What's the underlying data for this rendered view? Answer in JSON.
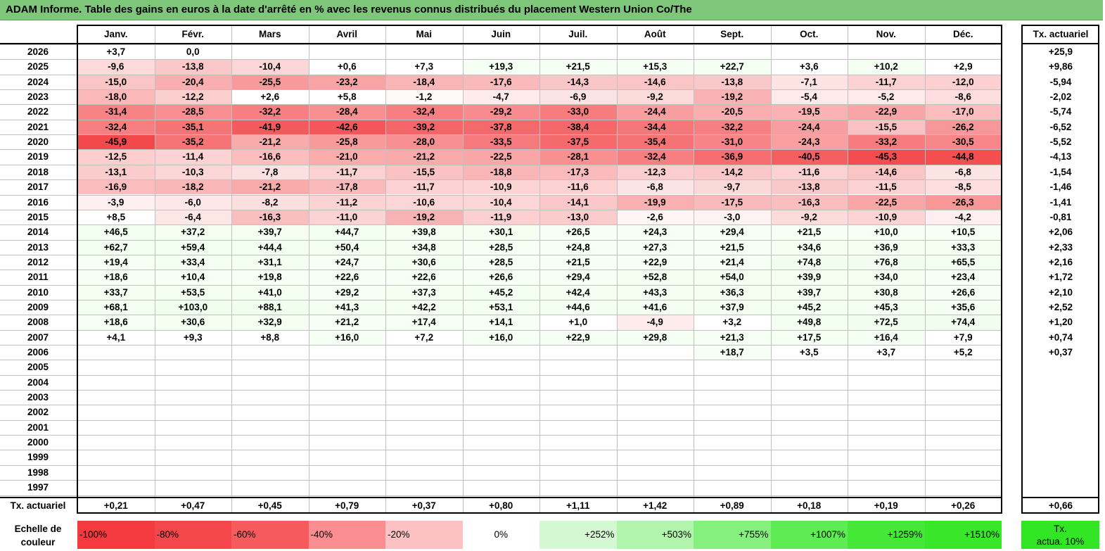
{
  "title": "ADAM Informe. Table des gains en euros à la date d'arrêté en % avec les revenus connus distribués du placement Western Union Co/The",
  "months": [
    "Janv.",
    "Févr.",
    "Mars",
    "Avril",
    "Mai",
    "Juin",
    "Juil.",
    "Août",
    "Sept.",
    "Oct.",
    "Nov.",
    "Déc."
  ],
  "annual_header": "Tx. actuariel",
  "footer_row_label": "Tx. actuariel",
  "chart_data": {
    "type": "table",
    "years": [
      "2026",
      "2025",
      "2024",
      "2023",
      "2022",
      "2021",
      "2020",
      "2019",
      "2018",
      "2017",
      "2016",
      "2015",
      "2014",
      "2013",
      "2012",
      "2011",
      "2010",
      "2009",
      "2008",
      "2007",
      "2006",
      "2005",
      "2004",
      "2003",
      "2002",
      "2001",
      "2000",
      "1999",
      "1998",
      "1997"
    ],
    "values": [
      [
        "+3,7",
        "0,0",
        "",
        "",
        "",
        "",
        "",
        "",
        "",
        "",
        "",
        ""
      ],
      [
        "-9,6",
        "-13,8",
        "-10,4",
        "+0,6",
        "+7,3",
        "+19,3",
        "+21,5",
        "+15,3",
        "+22,7",
        "+3,6",
        "+10,2",
        "+2,9"
      ],
      [
        "-15,0",
        "-20,4",
        "-25,5",
        "-23,2",
        "-18,4",
        "-17,6",
        "-14,3",
        "-14,6",
        "-13,8",
        "-7,1",
        "-11,7",
        "-12,0"
      ],
      [
        "-18,0",
        "-12,2",
        "+2,6",
        "+5,8",
        "-1,2",
        "-4,7",
        "-6,9",
        "-9,2",
        "-19,2",
        "-5,4",
        "-5,2",
        "-8,6"
      ],
      [
        "-31,4",
        "-28,5",
        "-32,2",
        "-28,4",
        "-32,4",
        "-29,2",
        "-33,0",
        "-24,4",
        "-20,5",
        "-19,5",
        "-22,9",
        "-17,0"
      ],
      [
        "-32,4",
        "-35,1",
        "-41,9",
        "-42,6",
        "-39,2",
        "-37,8",
        "-38,4",
        "-34,4",
        "-32,2",
        "-24,4",
        "-15,5",
        "-26,2"
      ],
      [
        "-45,9",
        "-35,2",
        "-21,2",
        "-25,8",
        "-28,0",
        "-33,5",
        "-37,5",
        "-35,4",
        "-31,0",
        "-24,3",
        "-33,2",
        "-30,5"
      ],
      [
        "-12,5",
        "-11,4",
        "-16,6",
        "-21,0",
        "-21,2",
        "-22,5",
        "-28,1",
        "-32,4",
        "-36,9",
        "-40,5",
        "-45,3",
        "-44,8"
      ],
      [
        "-13,1",
        "-10,3",
        "-7,8",
        "-11,7",
        "-15,5",
        "-18,8",
        "-17,3",
        "-12,3",
        "-14,2",
        "-11,6",
        "-14,6",
        "-6,8"
      ],
      [
        "-16,9",
        "-18,2",
        "-21,2",
        "-17,8",
        "-11,7",
        "-10,9",
        "-11,6",
        "-6,8",
        "-9,7",
        "-13,8",
        "-11,5",
        "-8,5"
      ],
      [
        "-3,9",
        "-6,0",
        "-8,2",
        "-11,2",
        "-10,6",
        "-10,4",
        "-14,1",
        "-19,9",
        "-17,5",
        "-16,3",
        "-22,5",
        "-26,3"
      ],
      [
        "+8,5",
        "-6,4",
        "-16,3",
        "-11,0",
        "-19,2",
        "-11,9",
        "-13,0",
        "-2,6",
        "-3,0",
        "-9,2",
        "-10,9",
        "-4,2"
      ],
      [
        "+46,5",
        "+37,2",
        "+39,7",
        "+44,7",
        "+39,8",
        "+30,1",
        "+26,5",
        "+24,3",
        "+29,4",
        "+21,5",
        "+10,0",
        "+10,5"
      ],
      [
        "+62,7",
        "+59,4",
        "+44,4",
        "+50,4",
        "+34,8",
        "+28,5",
        "+24,8",
        "+27,3",
        "+21,5",
        "+34,6",
        "+36,9",
        "+33,3"
      ],
      [
        "+19,4",
        "+33,4",
        "+31,1",
        "+24,7",
        "+30,6",
        "+28,5",
        "+21,5",
        "+22,9",
        "+21,4",
        "+74,8",
        "+76,8",
        "+65,5"
      ],
      [
        "+18,6",
        "+10,4",
        "+19,8",
        "+22,6",
        "+22,6",
        "+26,6",
        "+29,4",
        "+52,8",
        "+54,0",
        "+39,9",
        "+34,0",
        "+23,4"
      ],
      [
        "+33,7",
        "+53,5",
        "+41,0",
        "+29,2",
        "+37,3",
        "+45,2",
        "+42,4",
        "+43,3",
        "+36,3",
        "+39,7",
        "+30,8",
        "+26,6"
      ],
      [
        "+68,1",
        "+103,0",
        "+88,1",
        "+41,3",
        "+42,2",
        "+53,1",
        "+44,6",
        "+41,6",
        "+37,9",
        "+45,2",
        "+45,3",
        "+35,6"
      ],
      [
        "+18,6",
        "+30,6",
        "+32,9",
        "+21,2",
        "+17,4",
        "+14,1",
        "+1,0",
        "-4,9",
        "+3,2",
        "+49,8",
        "+72,5",
        "+74,4"
      ],
      [
        "+4,1",
        "+9,3",
        "+8,8",
        "+16,0",
        "+7,2",
        "+16,0",
        "+22,9",
        "+29,8",
        "+21,3",
        "+17,5",
        "+16,4",
        "+7,9"
      ],
      [
        "",
        "",
        "",
        "",
        "",
        "",
        "",
        "",
        "+18,7",
        "+3,5",
        "+3,7",
        "+5,2"
      ],
      [
        "",
        "",
        "",
        "",
        "",
        "",
        "",
        "",
        "",
        "",
        "",
        ""
      ],
      [
        "",
        "",
        "",
        "",
        "",
        "",
        "",
        "",
        "",
        "",
        "",
        ""
      ],
      [
        "",
        "",
        "",
        "",
        "",
        "",
        "",
        "",
        "",
        "",
        "",
        ""
      ],
      [
        "",
        "",
        "",
        "",
        "",
        "",
        "",
        "",
        "",
        "",
        "",
        ""
      ],
      [
        "",
        "",
        "",
        "",
        "",
        "",
        "",
        "",
        "",
        "",
        "",
        ""
      ],
      [
        "",
        "",
        "",
        "",
        "",
        "",
        "",
        "",
        "",
        "",
        "",
        ""
      ],
      [
        "",
        "",
        "",
        "",
        "",
        "",
        "",
        "",
        "",
        "",
        "",
        ""
      ],
      [
        "",
        "",
        "",
        "",
        "",
        "",
        "",
        "",
        "",
        "",
        "",
        ""
      ],
      [
        "",
        "",
        "",
        "",
        "",
        "",
        "",
        "",
        "",
        "",
        "",
        ""
      ]
    ],
    "annual": [
      "+25,9",
      "+9,86",
      "-5,94",
      "-2,02",
      "-5,74",
      "-6,52",
      "-5,52",
      "-4,13",
      "-1,54",
      "-1,46",
      "-1,41",
      "-0,81",
      "+2,06",
      "+2,33",
      "+2,16",
      "+1,72",
      "+2,10",
      "+2,52",
      "+1,20",
      "+0,74",
      "+0,37",
      "",
      "",
      "",
      "",
      "",
      "",
      "",
      "",
      ""
    ],
    "monthly_rate": [
      "+0,21",
      "+0,47",
      "+0,45",
      "+0,79",
      "+0,37",
      "+0,80",
      "+1,11",
      "+1,42",
      "+0,89",
      "+0,18",
      "+0,19",
      "+0,26"
    ],
    "overall_rate": "+0,66"
  },
  "color_scale": {
    "label_line1": "Echelle de",
    "label_line2": "couleur",
    "stops": [
      {
        "label": "-100%",
        "color": "#f23a3f",
        "align": "left"
      },
      {
        "label": "-80%",
        "color": "#f4474b",
        "align": "left"
      },
      {
        "label": "-60%",
        "color": "#f65a5d",
        "align": "left"
      },
      {
        "label": "-40%",
        "color": "#f98d8f",
        "align": "left"
      },
      {
        "label": "-20%",
        "color": "#fcc2c3",
        "align": "left"
      },
      {
        "label": "0%",
        "color": "#ffffff",
        "align": "center"
      },
      {
        "label": "+252%",
        "color": "#d4f9d2",
        "align": "right"
      },
      {
        "label": "+503%",
        "color": "#b1f5ad",
        "align": "right"
      },
      {
        "label": "+755%",
        "color": "#86f07f",
        "align": "right"
      },
      {
        "label": "+1007%",
        "color": "#5eeb53",
        "align": "right"
      },
      {
        "label": "+1259%",
        "color": "#46e838",
        "align": "right"
      },
      {
        "label": "+1510%",
        "color": "#38e62a",
        "align": "right"
      }
    ],
    "legend_box_line1": "Tx.",
    "legend_box_line2": "actua. 10%",
    "legend_box_color": "#33e625"
  }
}
